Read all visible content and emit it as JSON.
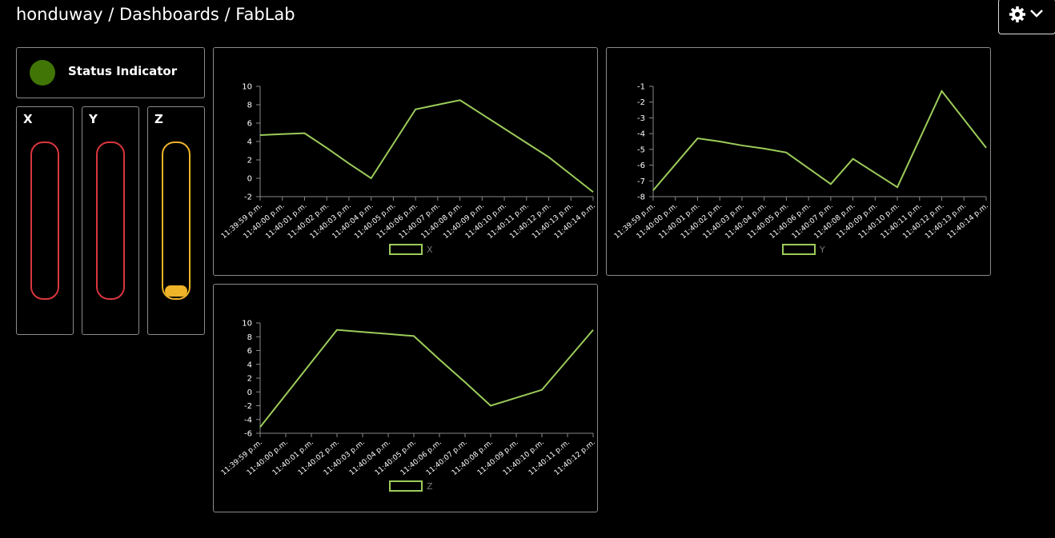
{
  "header": {
    "breadcrumb": "honduway / Dashboards / FabLab"
  },
  "status": {
    "label": "Status Indicator"
  },
  "gauges": [
    {
      "label": "X"
    },
    {
      "label": "Y"
    },
    {
      "label": "Z"
    }
  ],
  "chart_data": [
    {
      "type": "line",
      "categories": [
        "11:39:59 p.m.",
        "11:40:00 p.m.",
        "11:40:01 p.m.",
        "11:40:02 p.m.",
        "11:40:03 p.m.",
        "11:40:04 p.m.",
        "11:40:05 p.m.",
        "11:40:06 p.m.",
        "11:40:07 p.m.",
        "11:40:08 p.m.",
        "11:40:09 p.m.",
        "11:40:10 p.m.",
        "11:40:11 p.m.",
        "11:40:12 p.m.",
        "11:40:13 p.m.",
        "11:40:14 p.m."
      ],
      "series": [
        {
          "name": "X",
          "color": "#9ccc5a",
          "values": [
            4.7,
            4.8,
            4.9,
            3.3,
            1.6,
            0,
            3.75,
            7.5,
            8.0,
            8.5,
            6.95,
            5.4,
            3.85,
            2.3,
            0.4,
            -1.5
          ]
        }
      ],
      "ylim": [
        -2,
        10
      ],
      "yticks": [
        -2,
        0,
        2,
        4,
        6,
        8,
        10
      ]
    },
    {
      "type": "line",
      "categories": [
        "11:39:59 p.m.",
        "11:40:00 p.m.",
        "11:40:01 p.m.",
        "11:40:02 p.m.",
        "11:40:03 p.m.",
        "11:40:04 p.m.",
        "11:40:05 p.m.",
        "11:40:06 p.m.",
        "11:40:07 p.m.",
        "11:40:08 p.m.",
        "11:40:09 p.m.",
        "11:40:10 p.m.",
        "11:40:11 p.m.",
        "11:40:12 p.m.",
        "11:40:13 p.m.",
        "11:40:14 p.m."
      ],
      "series": [
        {
          "name": "Y",
          "color": "#9ccc5a",
          "values": [
            -7.6,
            -5.95,
            -4.3,
            -4.5,
            -4.75,
            -4.95,
            -5.2,
            -6.2,
            -7.2,
            -5.6,
            -6.5,
            -7.4,
            -4.35,
            -1.3,
            -3.1,
            -4.9
          ]
        }
      ],
      "ylim": [
        -8,
        -1
      ],
      "yticks": [
        -8,
        -7,
        -6,
        -5,
        -4,
        -3,
        -2,
        -1
      ]
    },
    {
      "type": "line",
      "categories": [
        "11:39:59 p.m.",
        "11:40:00 p.m.",
        "11:40:01 p.m.",
        "11:40:02 p.m.",
        "11:40:03 p.m.",
        "11:40:04 p.m.",
        "11:40:05 p.m.",
        "11:40:06 p.m.",
        "11:40:07 p.m.",
        "11:40:08 p.m.",
        "11:40:09 p.m.",
        "11:40:10 p.m.",
        "11:40:11 p.m.",
        "11:40:12 p.m."
      ],
      "series": [
        {
          "name": "Z",
          "color": "#9ccc5a",
          "values": [
            -5.1,
            -0.4,
            4.3,
            9.0,
            8.7,
            8.4,
            8.1,
            4.7,
            1.4,
            -2.0,
            -0.85,
            0.3,
            4.65,
            9.0
          ]
        }
      ],
      "ylim": [
        -6,
        10
      ],
      "yticks": [
        -6,
        -4,
        -2,
        0,
        2,
        4,
        6,
        8,
        10
      ]
    }
  ]
}
